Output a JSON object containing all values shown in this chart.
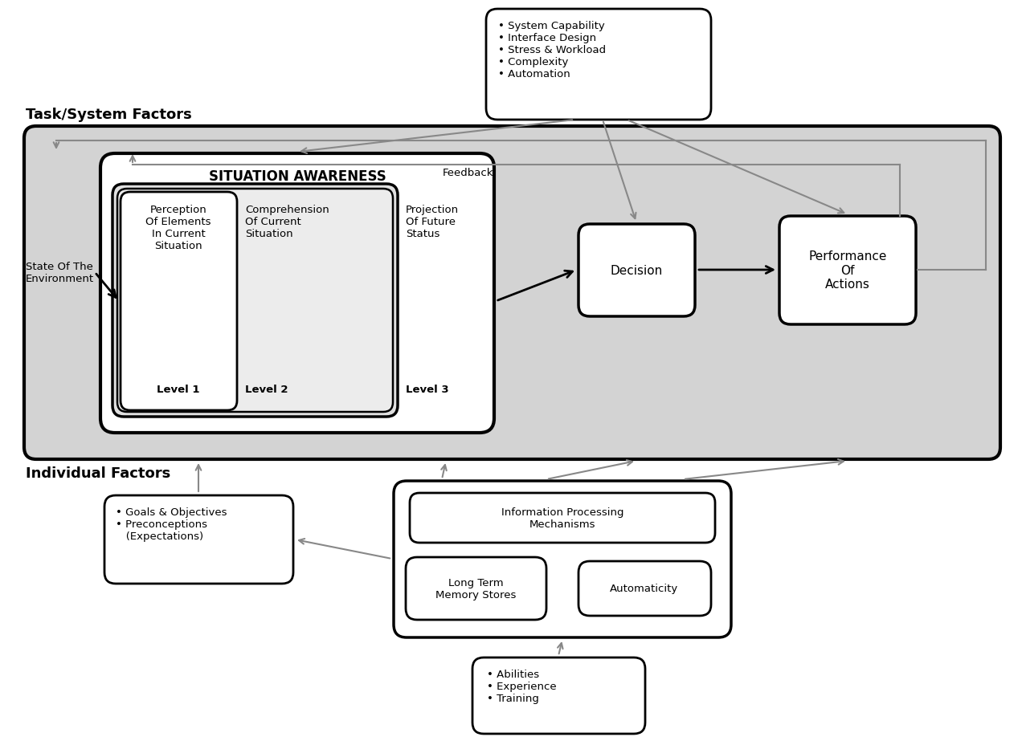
{
  "bg_color": "#ffffff",
  "gray_bg": "#d3d3d3",
  "arrow_color": "#888888",
  "dark_arrow": "#000000",
  "task_system_label": "Task/System Factors",
  "individual_label": "Individual Factors",
  "sa_title": "SITUATION AWARENESS",
  "decision_text": "Decision",
  "performance_text": "Performance\nOf\nActions",
  "state_text": "State Of The\nEnvironment",
  "feedback_text": "Feedback",
  "top_box_text": "• System Capability\n• Interface Design\n• Stress & Workload\n• Complexity\n• Automation",
  "goals_text": "• Goals & Objectives\n• Preconceptions\n   (Expectations)",
  "ipm_text": "Information Processing\nMechanisms",
  "ltm_text": "Long Term\nMemory Stores",
  "auto_text": "Automaticity",
  "abet_text": "• Abilities\n• Experience\n• Training",
  "level1_upper": "Perception\nOf Elements\nIn Current\nSituation",
  "level1_lower": "Level 1",
  "level2_upper": "Comprehension\nOf Current\nSituation",
  "level2_lower": "Level 2",
  "level3_upper": "Projection\nOf Future\nStatus",
  "level3_lower": "Level 3"
}
